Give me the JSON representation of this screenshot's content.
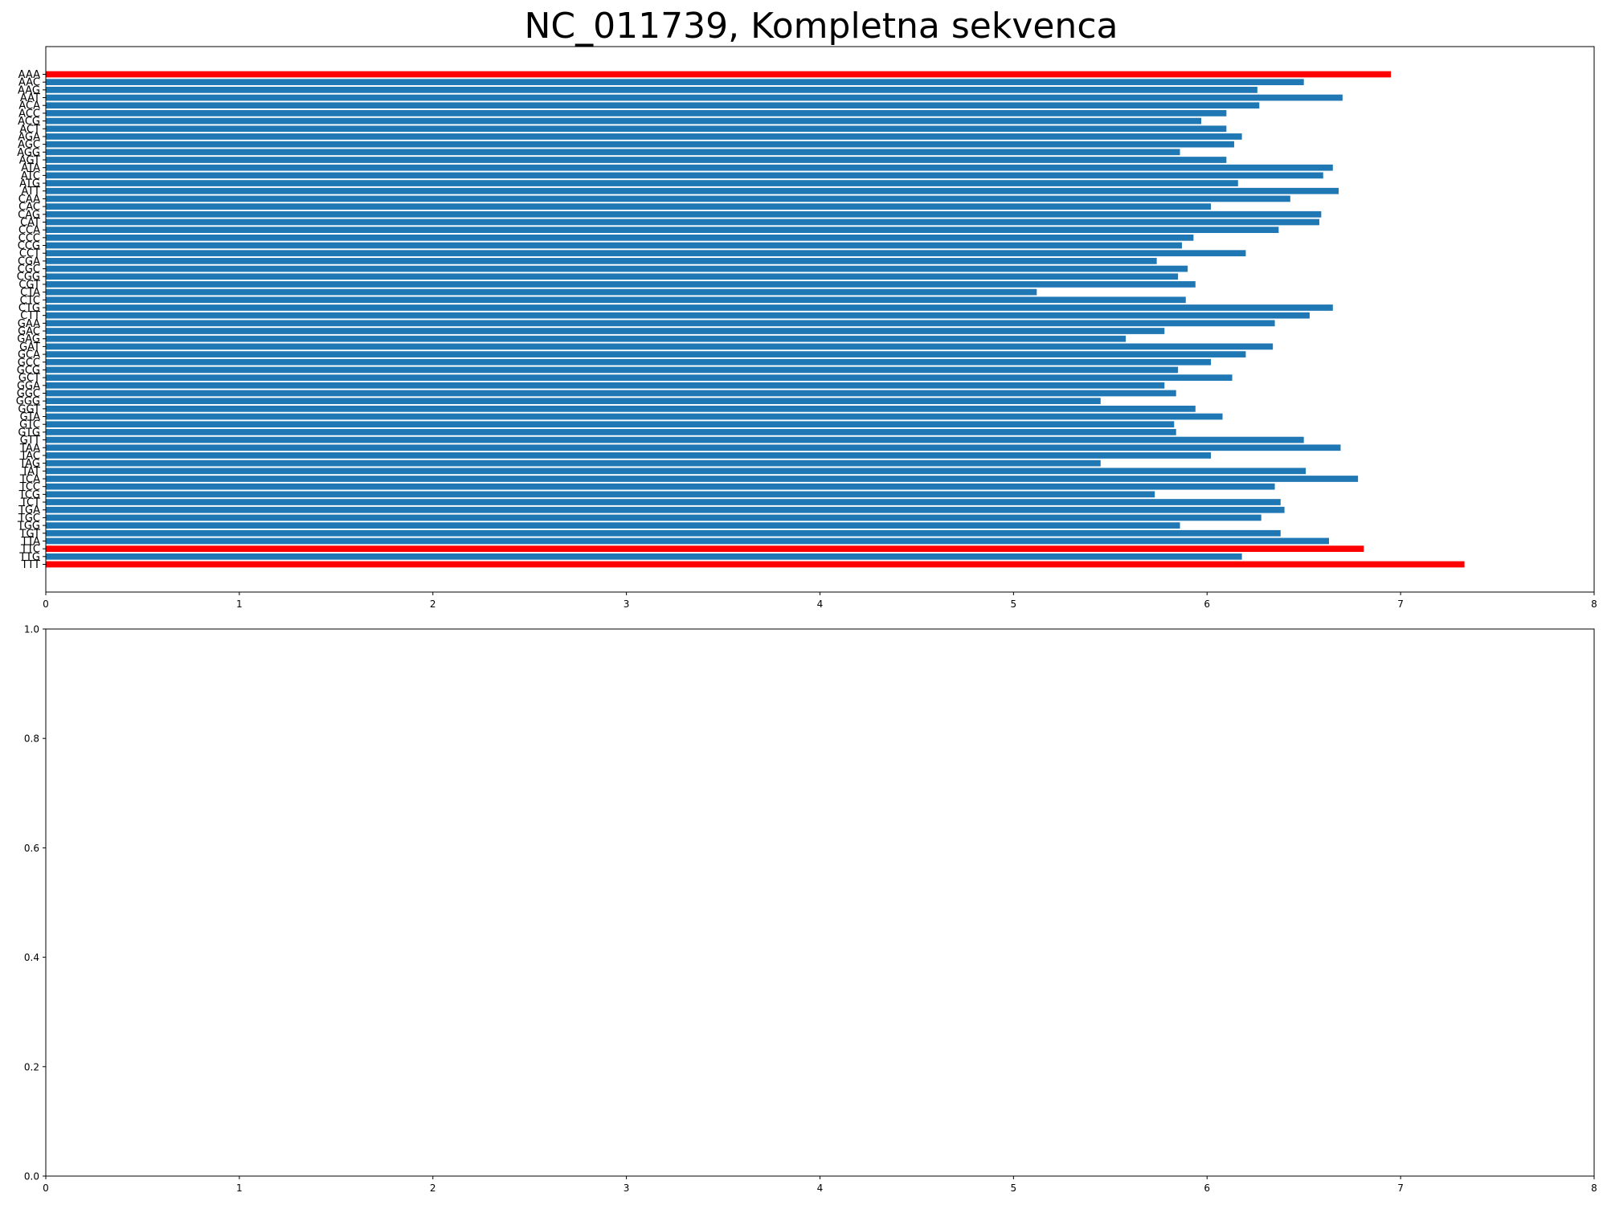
{
  "chart_data": [
    {
      "type": "bar",
      "orientation": "horizontal",
      "title": "NC_011739, Kompletna sekvenca",
      "xlabel": "",
      "ylabel": "",
      "xlim": [
        0,
        8
      ],
      "xticks": [
        "0",
        "1",
        "2",
        "3",
        "4",
        "5",
        "6",
        "7",
        "8"
      ],
      "grid": false,
      "default_color": "#1f77b4",
      "highlight_color": "#ff0000",
      "categories": [
        "AAA",
        "AAC",
        "AAG",
        "AAT",
        "ACA",
        "ACC",
        "ACG",
        "ACT",
        "AGA",
        "AGC",
        "AGG",
        "AGT",
        "ATA",
        "ATC",
        "ATG",
        "ATT",
        "CAA",
        "CAC",
        "CAG",
        "CAT",
        "CCA",
        "CCC",
        "CCG",
        "CCT",
        "CGA",
        "CGC",
        "CGG",
        "CGT",
        "CTA",
        "CTC",
        "CTG",
        "CTT",
        "GAA",
        "GAC",
        "GAG",
        "GAT",
        "GCA",
        "GCC",
        "GCG",
        "GCT",
        "GGA",
        "GGC",
        "GGG",
        "GGT",
        "GTA",
        "GTC",
        "GTG",
        "GTT",
        "TAA",
        "TAC",
        "TAG",
        "TAT",
        "TCA",
        "TCC",
        "TCG",
        "TCT",
        "TGA",
        "TGC",
        "TGG",
        "TGT",
        "TTA",
        "TTC",
        "TTG",
        "TTT"
      ],
      "values": [
        6.95,
        6.5,
        6.26,
        6.7,
        6.27,
        6.1,
        5.97,
        6.1,
        6.18,
        6.14,
        5.86,
        6.1,
        6.65,
        6.6,
        6.16,
        6.68,
        6.43,
        6.02,
        6.59,
        6.58,
        6.37,
        5.93,
        5.87,
        6.2,
        5.74,
        5.9,
        5.85,
        5.94,
        5.12,
        5.89,
        6.65,
        6.53,
        6.35,
        5.78,
        5.58,
        6.34,
        6.2,
        6.02,
        5.85,
        6.13,
        5.78,
        5.84,
        5.45,
        5.94,
        6.08,
        5.83,
        5.84,
        6.5,
        6.69,
        6.02,
        5.45,
        6.51,
        6.78,
        6.35,
        5.73,
        6.38,
        6.4,
        6.28,
        5.86,
        6.38,
        6.63,
        6.81,
        6.18,
        7.33
      ],
      "highlighted": [
        "AAA",
        "TTC",
        "TTT"
      ]
    },
    {
      "type": "bar",
      "title": "",
      "xlabel": "",
      "ylabel": "",
      "xlim": [
        0,
        8
      ],
      "ylim": [
        0,
        1
      ],
      "xticks": [
        "0",
        "1",
        "2",
        "3",
        "4",
        "5",
        "6",
        "7",
        "8"
      ],
      "yticks": [
        "0.0",
        "0.2",
        "0.4",
        "0.6",
        "0.8",
        "1.0"
      ],
      "grid": false,
      "values": []
    }
  ]
}
